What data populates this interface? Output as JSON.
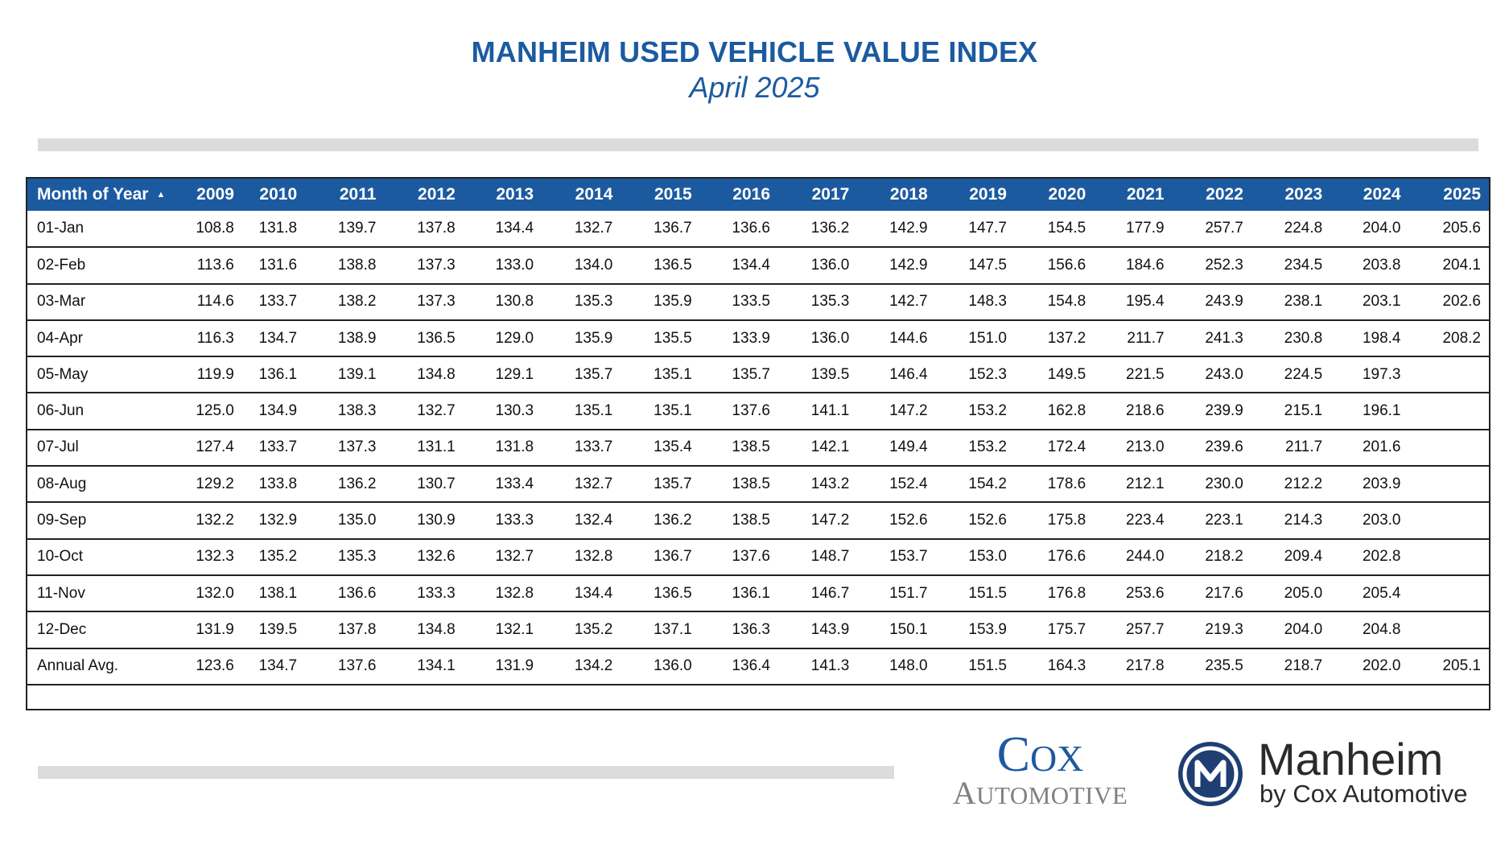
{
  "title": "MANHEIM USED VEHICLE VALUE INDEX",
  "subtitle": "April 2025",
  "table": {
    "first_header": "Month of Year",
    "sort_icon": "sort-ascending-icon",
    "years": [
      "2009",
      "2010",
      "2011",
      "2012",
      "2013",
      "2014",
      "2015",
      "2016",
      "2017",
      "2018",
      "2019",
      "2020",
      "2021",
      "2022",
      "2023",
      "2024",
      "2025"
    ],
    "rows": [
      {
        "label": "01-Jan",
        "values": [
          "108.8",
          "131.8",
          "139.7",
          "137.8",
          "134.4",
          "132.7",
          "136.7",
          "136.6",
          "136.2",
          "142.9",
          "147.7",
          "154.5",
          "177.9",
          "257.7",
          "224.8",
          "204.0",
          "205.6"
        ]
      },
      {
        "label": "02-Feb",
        "values": [
          "113.6",
          "131.6",
          "138.8",
          "137.3",
          "133.0",
          "134.0",
          "136.5",
          "134.4",
          "136.0",
          "142.9",
          "147.5",
          "156.6",
          "184.6",
          "252.3",
          "234.5",
          "203.8",
          "204.1"
        ]
      },
      {
        "label": "03-Mar",
        "values": [
          "114.6",
          "133.7",
          "138.2",
          "137.3",
          "130.8",
          "135.3",
          "135.9",
          "133.5",
          "135.3",
          "142.7",
          "148.3",
          "154.8",
          "195.4",
          "243.9",
          "238.1",
          "203.1",
          "202.6"
        ]
      },
      {
        "label": "04-Apr",
        "values": [
          "116.3",
          "134.7",
          "138.9",
          "136.5",
          "129.0",
          "135.9",
          "135.5",
          "133.9",
          "136.0",
          "144.6",
          "151.0",
          "137.2",
          "211.7",
          "241.3",
          "230.8",
          "198.4",
          "208.2"
        ]
      },
      {
        "label": "05-May",
        "values": [
          "119.9",
          "136.1",
          "139.1",
          "134.8",
          "129.1",
          "135.7",
          "135.1",
          "135.7",
          "139.5",
          "146.4",
          "152.3",
          "149.5",
          "221.5",
          "243.0",
          "224.5",
          "197.3",
          ""
        ]
      },
      {
        "label": "06-Jun",
        "values": [
          "125.0",
          "134.9",
          "138.3",
          "132.7",
          "130.3",
          "135.1",
          "135.1",
          "137.6",
          "141.1",
          "147.2",
          "153.2",
          "162.8",
          "218.6",
          "239.9",
          "215.1",
          "196.1",
          ""
        ]
      },
      {
        "label": "07-Jul",
        "values": [
          "127.4",
          "133.7",
          "137.3",
          "131.1",
          "131.8",
          "133.7",
          "135.4",
          "138.5",
          "142.1",
          "149.4",
          "153.2",
          "172.4",
          "213.0",
          "239.6",
          "211.7",
          "201.6",
          ""
        ]
      },
      {
        "label": "08-Aug",
        "values": [
          "129.2",
          "133.8",
          "136.2",
          "130.7",
          "133.4",
          "132.7",
          "135.7",
          "138.5",
          "143.2",
          "152.4",
          "154.2",
          "178.6",
          "212.1",
          "230.0",
          "212.2",
          "203.9",
          ""
        ]
      },
      {
        "label": "09-Sep",
        "values": [
          "132.2",
          "132.9",
          "135.0",
          "130.9",
          "133.3",
          "132.4",
          "136.2",
          "138.5",
          "147.2",
          "152.6",
          "152.6",
          "175.8",
          "223.4",
          "223.1",
          "214.3",
          "203.0",
          ""
        ]
      },
      {
        "label": "10-Oct",
        "values": [
          "132.3",
          "135.2",
          "135.3",
          "132.6",
          "132.7",
          "132.8",
          "136.7",
          "137.6",
          "148.7",
          "153.7",
          "153.0",
          "176.6",
          "244.0",
          "218.2",
          "209.4",
          "202.8",
          ""
        ]
      },
      {
        "label": "11-Nov",
        "values": [
          "132.0",
          "138.1",
          "136.6",
          "133.3",
          "132.8",
          "134.4",
          "136.5",
          "136.1",
          "146.7",
          "151.7",
          "151.5",
          "176.8",
          "253.6",
          "217.6",
          "205.0",
          "205.4",
          ""
        ]
      },
      {
        "label": "12-Dec",
        "values": [
          "131.9",
          "139.5",
          "137.8",
          "134.8",
          "132.1",
          "135.2",
          "137.1",
          "136.3",
          "143.9",
          "150.1",
          "153.9",
          "175.7",
          "257.7",
          "219.3",
          "204.0",
          "204.8",
          ""
        ]
      },
      {
        "label": "Annual Avg.",
        "values": [
          "123.6",
          "134.7",
          "137.6",
          "134.1",
          "131.9",
          "134.2",
          "136.0",
          "136.4",
          "141.3",
          "148.0",
          "151.5",
          "164.3",
          "217.8",
          "235.5",
          "218.7",
          "202.0",
          "205.1"
        ]
      }
    ]
  },
  "logos": {
    "cox_word": "Cox",
    "cox_sub": "Automotive",
    "manheim_name": "Manheim",
    "manheim_sub": "by Cox Automotive",
    "manheim_icon": "manheim-m-logo-icon"
  },
  "colors": {
    "brand_blue": "#1c5aa0",
    "bar_gray": "#dcdcdc",
    "logo_gray": "#808080"
  }
}
